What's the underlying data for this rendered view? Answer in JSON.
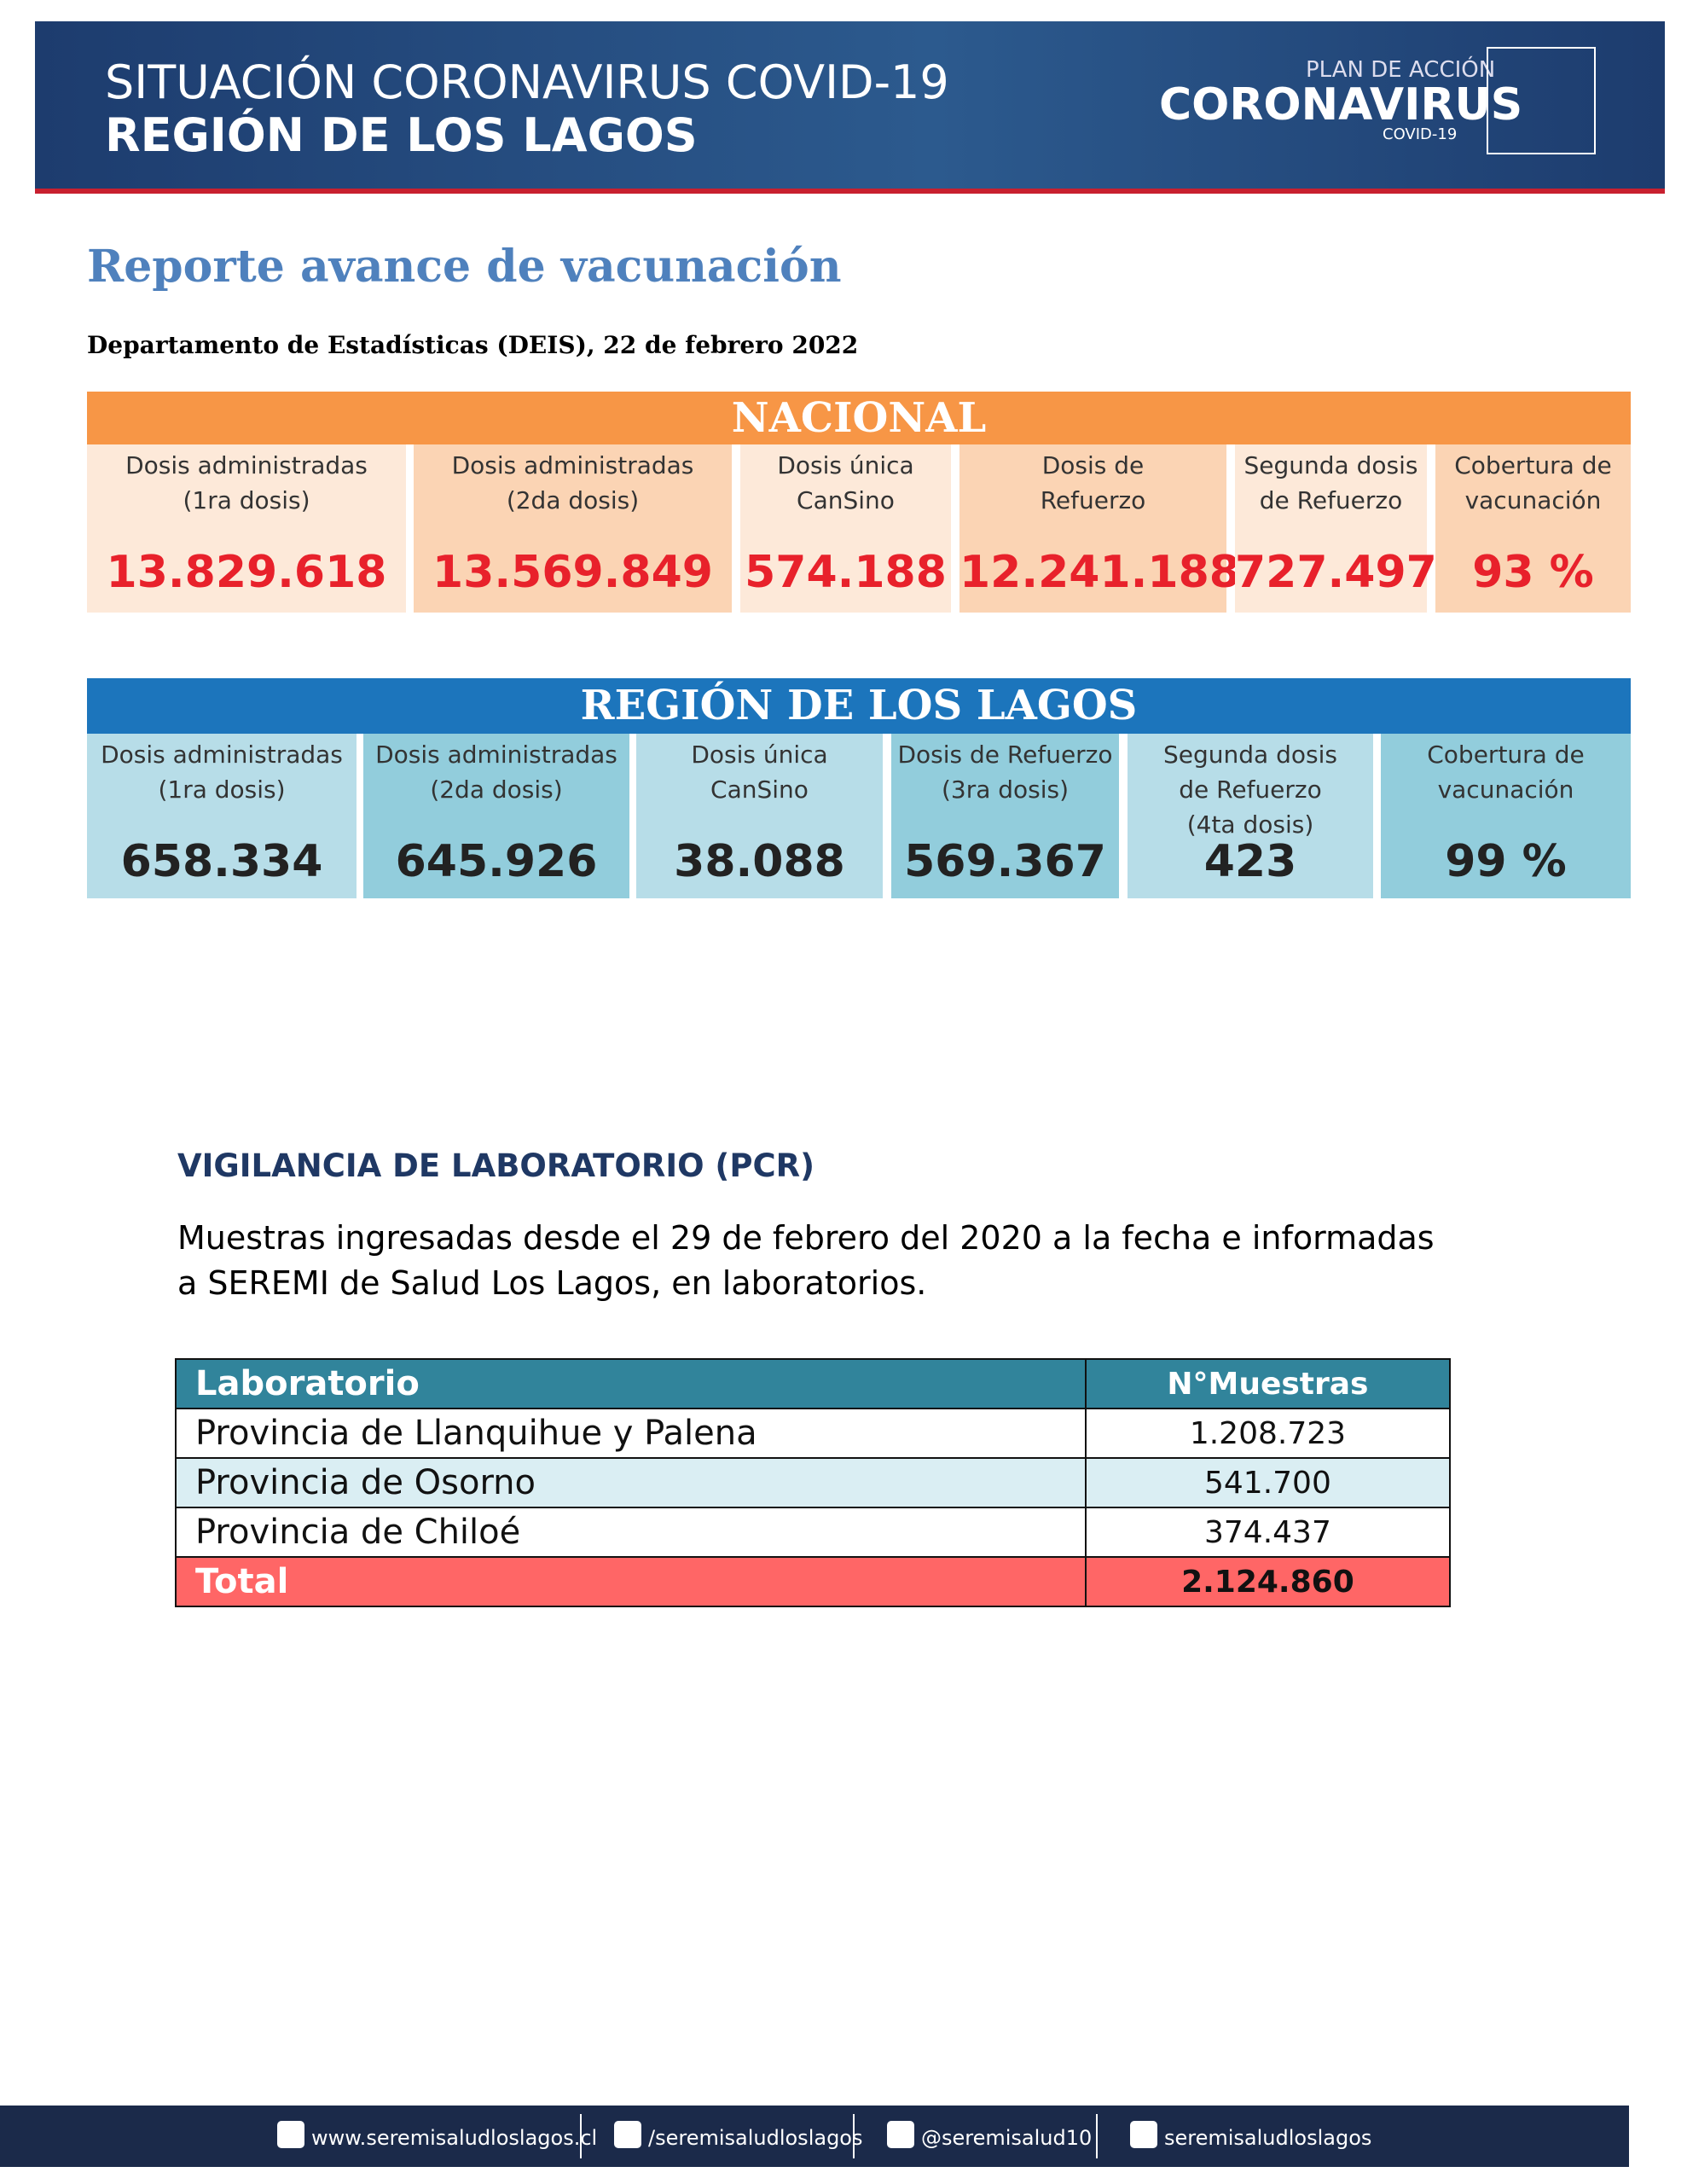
{
  "header": {
    "title_line1": "SITUACIÓN CORONAVIRUS COVID-19",
    "title_line2": "REGIÓN DE LOS LAGOS",
    "logo_top": "PLAN DE ACCIÓN",
    "logo_main": "CORONAVIRUS",
    "logo_sub": "COVID-19"
  },
  "report": {
    "title": "Reporte avance de vacunación",
    "source": "Departamento de Estadísticas (DEIS), 22 de febrero 2022"
  },
  "nacional": {
    "title": "NACIONAL",
    "items": [
      {
        "label": [
          "Dosis administradas",
          "(1ra dosis)"
        ],
        "value": "13.829.618"
      },
      {
        "label": [
          "Dosis administradas",
          "(2da dosis)"
        ],
        "value": "13.569.849"
      },
      {
        "label": [
          "Dosis única",
          "CanSino"
        ],
        "value": "574.188"
      },
      {
        "label": [
          "Dosis de",
          "Refuerzo"
        ],
        "value": "12.241.188"
      },
      {
        "label": [
          "Segunda dosis",
          "de Refuerzo"
        ],
        "value": "727.497"
      },
      {
        "label": [
          "Cobertura  de",
          "vacunación"
        ],
        "value": "93 %"
      }
    ]
  },
  "region": {
    "title": "REGIÓN DE LOS LAGOS",
    "items": [
      {
        "label": [
          "Dosis administradas",
          "(1ra dosis)"
        ],
        "value": "658.334"
      },
      {
        "label": [
          "Dosis administradas",
          "(2da dosis)"
        ],
        "value": "645.926"
      },
      {
        "label": [
          "Dosis única",
          "CanSino"
        ],
        "value": "38.088"
      },
      {
        "label": [
          "Dosis de Refuerzo",
          "(3ra dosis)"
        ],
        "value": "569.367"
      },
      {
        "label": [
          "Segunda dosis",
          "de Refuerzo",
          "(4ta dosis)"
        ],
        "value": "423"
      },
      {
        "label": [
          "Cobertura de",
          "vacunación"
        ],
        "value": "99 %"
      }
    ]
  },
  "pcr": {
    "heading": "VIGILANCIA DE LABORATORIO (PCR)",
    "text": "Muestras ingresadas desde el 29 de febrero del 2020 a la fecha e informadas a SEREMI de Salud Los Lagos, en laboratorios.",
    "table": {
      "columns": [
        "Laboratorio",
        "N°Muestras"
      ],
      "rows": [
        [
          "Provincia  de  Llanquihue  y  Palena",
          "1.208.723"
        ],
        [
          "Provincia de Osorno",
          "541.700"
        ],
        [
          "Provincia  de Chiloé",
          "374.437"
        ]
      ],
      "total": [
        "Total",
        "2.124.860"
      ]
    }
  },
  "footer": {
    "links": [
      "www.seremisaludloslagos.cl",
      "/seremisaludloslagos",
      "@seremisalud10",
      "seremisaludloslagos"
    ]
  }
}
